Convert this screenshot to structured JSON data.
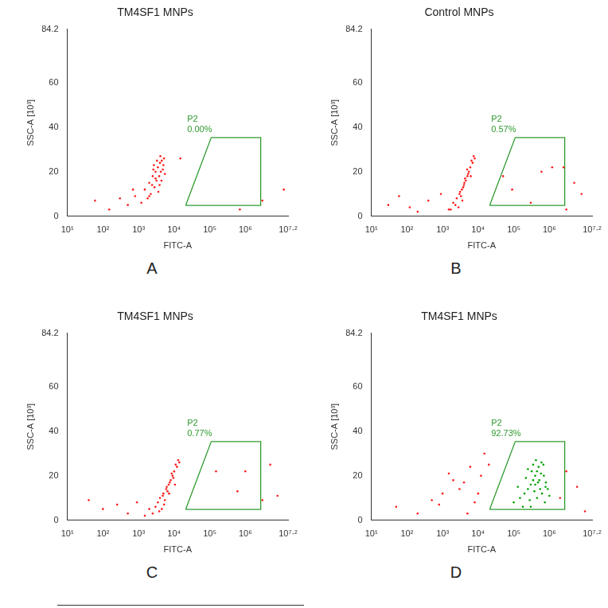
{
  "chart_data": [
    {
      "type": "scatter",
      "title": "TM4SF1 MNPs",
      "panel_label": "A",
      "x_label": "FITC-A",
      "y_label": "SSC-A [10³]",
      "log": "x",
      "grid": false,
      "xlim": [
        10,
        15848931.92
      ],
      "xticks": [
        {
          "value": 10,
          "label": "10¹"
        },
        {
          "value": 100,
          "label": "10²"
        },
        {
          "value": 1000,
          "label": "10³"
        },
        {
          "value": 10000,
          "label": "10⁴"
        },
        {
          "value": 100000,
          "label": "10⁵"
        },
        {
          "value": 1000000,
          "label": "10⁶"
        },
        {
          "value": 15848931.92,
          "label": "10⁷·²"
        }
      ],
      "ylim": [
        0,
        84.2
      ],
      "yticks": [
        0,
        20,
        40,
        60,
        84.2
      ],
      "series": [
        {
          "color": "#ff1a1a",
          "x": [
            1500,
            2000,
            2500,
            3000,
            3500,
            4000,
            4500,
            5000,
            2200,
            2800,
            3200,
            3800,
            4200,
            4800,
            5500,
            1800,
            2600,
            3300,
            4100,
            3600,
            2400,
            3000,
            4400,
            5200,
            1200,
            2000,
            3900,
            2700,
            60,
            150,
            300,
            500,
            800,
            700,
            15000,
            700000,
            3000000,
            12000000
          ],
          "y": [
            12,
            15,
            18,
            20,
            22,
            24,
            25,
            23,
            10,
            13,
            16,
            18,
            20,
            21,
            19,
            8,
            21,
            25,
            27,
            11,
            14,
            17,
            16,
            26,
            6,
            9,
            14,
            23,
            7,
            3,
            8,
            5,
            9,
            12,
            26,
            3,
            7,
            12
          ]
        }
      ],
      "gate": {
        "label": "P2",
        "percent": "0.00%",
        "color": "#2e9a2e",
        "x": [
          21000,
          110000,
          2700000,
          2700000,
          21000
        ],
        "y": [
          4.8,
          35.4,
          35.4,
          4.8,
          4.8
        ]
      }
    },
    {
      "type": "scatter",
      "title": "Control MNPs",
      "panel_label": "B",
      "x_label": "FITC-A",
      "y_label": "SSC-A [10³]",
      "log": "x",
      "grid": false,
      "xlim": [
        10,
        15848931.92
      ],
      "xticks": [
        {
          "value": 10,
          "label": "10¹"
        },
        {
          "value": 100,
          "label": "10²"
        },
        {
          "value": 1000,
          "label": "10³"
        },
        {
          "value": 10000,
          "label": "10⁴"
        },
        {
          "value": 100000,
          "label": "10⁵"
        },
        {
          "value": 1000000,
          "label": "10⁶"
        },
        {
          "value": 15848931.92,
          "label": "10⁷·²"
        }
      ],
      "ylim": [
        0,
        84.2
      ],
      "yticks": [
        0,
        20,
        40,
        60,
        84.2
      ],
      "series": [
        {
          "color": "#ff1a1a",
          "x": [
            2000,
            2500,
            3000,
            3500,
            4000,
            4500,
            5000,
            5500,
            6000,
            7000,
            8000,
            2800,
            3300,
            3800,
            4300,
            4900,
            6500,
            7500,
            2300,
            3100,
            4100,
            5200,
            1700,
            3600,
            6200,
            30,
            60,
            120,
            200,
            400,
            900,
            1500,
            50000,
            90000,
            300000,
            600000,
            1200000,
            2500000,
            5000000,
            8000000,
            3000000
          ],
          "y": [
            6,
            8,
            10,
            12,
            14,
            16,
            18,
            20,
            22,
            24,
            26,
            4,
            9,
            13,
            17,
            21,
            25,
            27,
            5,
            11,
            15,
            19,
            3,
            7,
            18,
            5,
            9,
            4,
            2,
            7,
            10,
            3,
            18,
            12,
            6,
            20,
            22,
            22,
            15,
            10,
            3
          ]
        }
      ],
      "gate": {
        "label": "P2",
        "percent": "0.57%",
        "color": "#2e9a2e",
        "x": [
          21000,
          110000,
          2700000,
          2700000,
          21000
        ],
        "y": [
          4.8,
          35.4,
          35.4,
          4.8,
          4.8
        ]
      }
    },
    {
      "type": "scatter",
      "title": "TM4SF1 MNPs",
      "panel_label": "C",
      "x_label": "FITC-A",
      "y_label": "SSC-A [10³]",
      "log": "x",
      "grid": false,
      "xlim": [
        10,
        15848931.92
      ],
      "xticks": [
        {
          "value": 10,
          "label": "10¹"
        },
        {
          "value": 100,
          "label": "10²"
        },
        {
          "value": 1000,
          "label": "10³"
        },
        {
          "value": 10000,
          "label": "10⁴"
        },
        {
          "value": 100000,
          "label": "10⁵"
        },
        {
          "value": 1000000,
          "label": "10⁶"
        },
        {
          "value": 15848931.92,
          "label": "10⁷·²"
        }
      ],
      "ylim": [
        0,
        84.2
      ],
      "yticks": [
        0,
        20,
        40,
        60,
        84.2
      ],
      "series": [
        {
          "color": "#ff1a1a",
          "x": [
            3000,
            3500,
            4000,
            5000,
            6000,
            7000,
            8000,
            9000,
            10000,
            12000,
            14000,
            4500,
            5500,
            6500,
            7500,
            8500,
            11000,
            13000,
            3800,
            4800,
            6200,
            9500,
            2500,
            5200,
            7200,
            10500,
            40,
            100,
            250,
            500,
            900,
            1500,
            2000,
            150000,
            600000,
            1000000,
            3000000,
            5000000,
            8000000
          ],
          "y": [
            6,
            8,
            10,
            12,
            14,
            16,
            18,
            20,
            22,
            24,
            26,
            5,
            9,
            13,
            17,
            21,
            25,
            27,
            4,
            11,
            15,
            19,
            3,
            7,
            12,
            16,
            9,
            5,
            7,
            3,
            8,
            2,
            5,
            22,
            13,
            22,
            9,
            25,
            11
          ]
        }
      ],
      "gate": {
        "label": "P2",
        "percent": "0.77%",
        "color": "#2e9a2e",
        "x": [
          21000,
          110000,
          2700000,
          2700000,
          21000
        ],
        "y": [
          4.8,
          35.4,
          35.4,
          4.8,
          4.8
        ]
      }
    },
    {
      "type": "scatter",
      "title": "TM4SF1 MNPs",
      "panel_label": "D",
      "x_label": "FITC-A",
      "y_label": "SSC-A [10³]",
      "log": "x",
      "grid": false,
      "xlim": [
        10,
        15848931.92
      ],
      "xticks": [
        {
          "value": 10,
          "label": "10¹"
        },
        {
          "value": 100,
          "label": "10²"
        },
        {
          "value": 1000,
          "label": "10³"
        },
        {
          "value": 10000,
          "label": "10⁴"
        },
        {
          "value": 100000,
          "label": "10⁵"
        },
        {
          "value": 1000000,
          "label": "10⁶"
        },
        {
          "value": 15848931.92,
          "label": "10⁷·²"
        }
      ],
      "ylim": [
        0,
        84.2
      ],
      "yticks": [
        0,
        20,
        40,
        60,
        84.2
      ],
      "series": [
        {
          "color": "#ff1a1a",
          "x": [
            50,
            200,
            500,
            1000,
            2000,
            3000,
            5000,
            8000,
            12000,
            20000,
            15000,
            6000,
            1500,
            4000,
            10000,
            2000000,
            3000000,
            6000000,
            10000000,
            800
          ],
          "y": [
            6,
            3,
            9,
            12,
            18,
            14,
            3,
            8,
            20,
            25,
            30,
            24,
            21,
            17,
            12,
            10,
            22,
            15,
            4,
            7
          ]
        },
        {
          "color": "#00a000",
          "x": [
            100000,
            150000,
            200000,
            250000,
            300000,
            350000,
            400000,
            450000,
            500000,
            600000,
            700000,
            800000,
            900000,
            1000000,
            180000,
            280000,
            380000,
            480000,
            580000,
            680000,
            780000,
            220000,
            320000,
            420000,
            520000,
            620000,
            130000,
            750000,
            350000,
            450000,
            550000,
            250000,
            300000,
            400000
          ],
          "y": [
            8,
            10,
            12,
            14,
            16,
            18,
            20,
            22,
            24,
            26,
            20,
            17,
            14,
            11,
            6,
            9,
            13,
            17,
            21,
            25,
            15,
            19,
            22,
            27,
            18,
            12,
            15,
            8,
            25,
            10,
            14,
            23,
            6,
            16
          ]
        }
      ],
      "gate": {
        "label": "P2",
        "percent": "92.73%",
        "color": "#2e9a2e",
        "x": [
          21000,
          110000,
          2700000,
          2700000,
          21000
        ],
        "y": [
          4.8,
          35.4,
          35.4,
          4.8,
          4.8
        ]
      }
    }
  ]
}
